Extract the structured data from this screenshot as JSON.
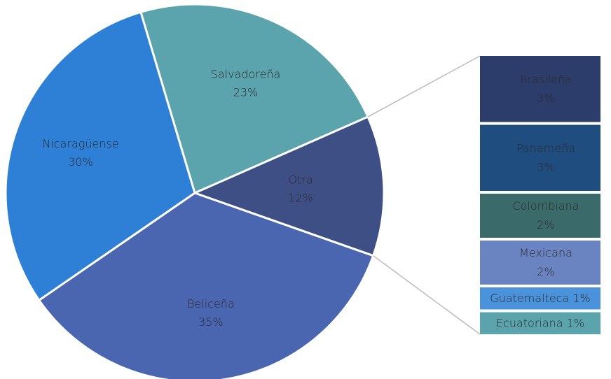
{
  "chart_data": {
    "type": "pie",
    "categories": [
      "Salvadoreña",
      "Otra",
      "Beliceña",
      "Nicaragüense"
    ],
    "values": [
      23,
      12,
      35,
      30
    ],
    "value_labels": [
      "23%",
      "12%",
      "35%",
      "30%"
    ],
    "colors": [
      "#5ba3ad",
      "#3d4f85",
      "#4a66b0",
      "#2e7fd6"
    ],
    "breakdown": {
      "categories": [
        "Brasileña",
        "Panameña",
        "Colombiana",
        "Mexicana",
        "Guatemalteca",
        "Ecuatoriana"
      ],
      "values": [
        3,
        3,
        2,
        2,
        1,
        1
      ],
      "value_labels": [
        "3%",
        "3%",
        "2%",
        "2%",
        "1%",
        "1%"
      ],
      "colors": [
        "#2c3d6b",
        "#1f4d80",
        "#3b6a6a",
        "#6a84c2",
        "#4a93dc",
        "#5ba3ad"
      ]
    }
  }
}
